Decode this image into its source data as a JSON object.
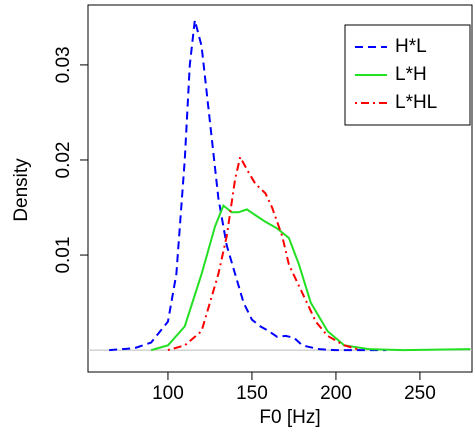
{
  "chart_data": {
    "type": "line",
    "x_label": "F0 [Hz]",
    "y_label": "Density",
    "xlim": [
      52.4,
      281
    ],
    "ylim": [
      -0.0023,
      0.0363
    ],
    "xticks": [
      100,
      150,
      200,
      250
    ],
    "yticks": [
      0.01,
      0.02,
      0.03
    ],
    "zero_line": true,
    "legend": "top-right",
    "series": [
      {
        "name": "H*L",
        "color": "#0000ff",
        "linestyle": "dashed",
        "x": [
          65,
          80,
          90,
          100,
          105,
          110,
          113,
          116,
          120,
          125,
          130,
          135,
          140,
          145,
          150,
          155,
          160,
          165,
          170,
          175,
          180,
          190,
          200,
          230
        ],
        "values": [
          0,
          0.0002,
          0.0008,
          0.003,
          0.008,
          0.02,
          0.03,
          0.0347,
          0.032,
          0.024,
          0.016,
          0.011,
          0.008,
          0.005,
          0.0032,
          0.0025,
          0.002,
          0.0014,
          0.0015,
          0.0013,
          0.0005,
          0.0001,
          0,
          0
        ]
      },
      {
        "name": "L*H",
        "color": "#22e022",
        "linestyle": "solid",
        "x": [
          90,
          100,
          110,
          120,
          128,
          133,
          138,
          142,
          147,
          152,
          158,
          165,
          172,
          178,
          185,
          195,
          205,
          220,
          240,
          280
        ],
        "values": [
          0,
          0.0005,
          0.0025,
          0.008,
          0.013,
          0.0152,
          0.0145,
          0.0145,
          0.0148,
          0.0142,
          0.0135,
          0.0128,
          0.0118,
          0.009,
          0.005,
          0.002,
          0.0005,
          0.0001,
          0,
          0.0001
        ]
      },
      {
        "name": "L*HL",
        "color": "#ff0000",
        "linestyle": "dotdash",
        "x": [
          100,
          110,
          120,
          130,
          135,
          140,
          143,
          147,
          152,
          158,
          162,
          168,
          172,
          180,
          188,
          195,
          205,
          215
        ],
        "values": [
          0,
          0.0005,
          0.002,
          0.008,
          0.012,
          0.018,
          0.0203,
          0.019,
          0.0175,
          0.0165,
          0.015,
          0.012,
          0.009,
          0.006,
          0.003,
          0.0015,
          0.0005,
          0
        ]
      }
    ]
  }
}
